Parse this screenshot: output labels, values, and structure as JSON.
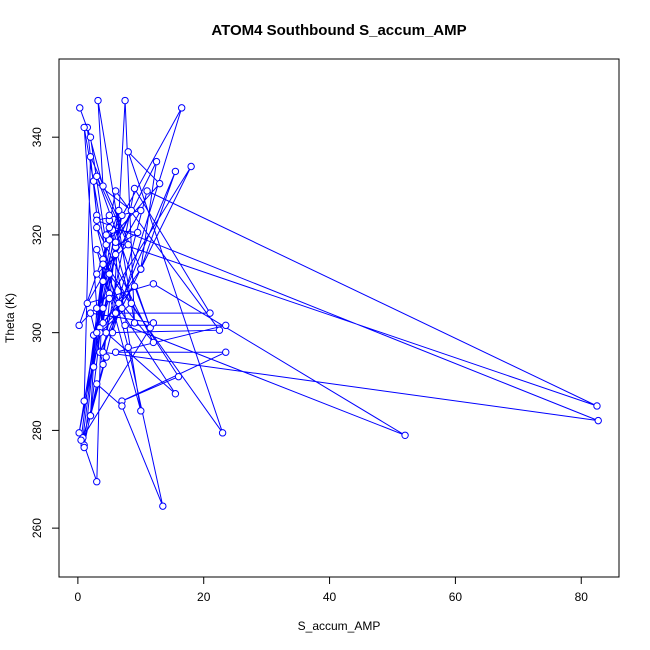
{
  "chart_data": {
    "type": "line",
    "title": "ATOM4 Southbound S_accum_AMP",
    "xlabel": "S_accum_AMP",
    "ylabel": "Theta (K)",
    "xlim": [
      -3,
      86
    ],
    "ylim": [
      250,
      356
    ],
    "x_ticks": [
      0,
      20,
      40,
      60,
      80
    ],
    "y_ticks": [
      260,
      280,
      300,
      320,
      340
    ],
    "series_color": "#0000ff",
    "marker": "open-circle",
    "grid": false,
    "legend": "none",
    "series": [
      {
        "points": [
          [
            0.3,
            346
          ],
          [
            2.0,
            340
          ],
          [
            4.5,
            318
          ],
          [
            16.5,
            346
          ],
          [
            5.5,
            300
          ],
          [
            7.5,
            347.5
          ],
          [
            9.0,
            302
          ],
          [
            3.2,
            347.5
          ],
          [
            4.0,
            330
          ],
          [
            1.5,
            342
          ],
          [
            3.0,
            324
          ],
          [
            2.5,
            331
          ],
          [
            8.5,
            325
          ],
          [
            6.0,
            318
          ],
          [
            12.5,
            335
          ],
          [
            10.0,
            313
          ],
          [
            15.5,
            333
          ],
          [
            3.5,
            296
          ],
          [
            18.0,
            334
          ],
          [
            4.0,
            305
          ],
          [
            2.0,
            283
          ],
          [
            3.0,
            305
          ],
          [
            1.0,
            342
          ],
          [
            5.0,
            312
          ],
          [
            23.0,
            279.5
          ],
          [
            8.0,
            337
          ],
          [
            13.0,
            330.5
          ],
          [
            5.0,
            319
          ],
          [
            82.5,
            285
          ],
          [
            11.0,
            329
          ],
          [
            6.0,
            304
          ],
          [
            21.0,
            304
          ],
          [
            9.0,
            329.5
          ],
          [
            4.0,
            296
          ],
          [
            82.7,
            282
          ],
          [
            3.0,
            323
          ],
          [
            10.0,
            325
          ],
          [
            1.5,
            306
          ],
          [
            12.0,
            310
          ],
          [
            52.0,
            279
          ],
          [
            7.5,
            301.5
          ],
          [
            23.5,
            301.5
          ],
          [
            6.0,
            296
          ],
          [
            23.5,
            296
          ],
          [
            7.0,
            286
          ],
          [
            16.0,
            291
          ],
          [
            3.0,
            317
          ],
          [
            10.0,
            284
          ],
          [
            5.0,
            323
          ],
          [
            2.5,
            293
          ],
          [
            7.0,
            324
          ],
          [
            4.0,
            310.5
          ],
          [
            12.0,
            298
          ],
          [
            3.0,
            321.5
          ],
          [
            8.0,
            297
          ],
          [
            13.5,
            264.5
          ],
          [
            7.0,
            285
          ],
          [
            3.0,
            289.5
          ],
          [
            1.0,
            277
          ],
          [
            3.0,
            269.5
          ],
          [
            4.0,
            315
          ],
          [
            6.0,
            329
          ],
          [
            22.5,
            300.5
          ],
          [
            4.5,
            300
          ],
          [
            15.5,
            287.5
          ],
          [
            5.0,
            308
          ],
          [
            0.2,
            301.5
          ],
          [
            6.5,
            325
          ],
          [
            1.0,
            286
          ],
          [
            2.0,
            336
          ],
          [
            10.0,
            313
          ],
          [
            3.5,
            301
          ],
          [
            0.2,
            279.5
          ],
          [
            5.5,
            321
          ],
          [
            9.5,
            320.5
          ],
          [
            6.0,
            317.5
          ],
          [
            4.0,
            302
          ],
          [
            9.0,
            309.5
          ],
          [
            11.5,
            301
          ],
          [
            3.0,
            332
          ],
          [
            8.0,
            318
          ],
          [
            3.0,
            312
          ],
          [
            6.5,
            306
          ],
          [
            2.0,
            283
          ],
          [
            4.5,
            295
          ],
          [
            0.8,
            278.5
          ],
          [
            5.0,
            321.5
          ],
          [
            8.5,
            306
          ],
          [
            3.5,
            300
          ],
          [
            6.0,
            316
          ],
          [
            2.5,
            299.5
          ],
          [
            7.0,
            305
          ],
          [
            4.0,
            314
          ],
          [
            5.0,
            307
          ],
          [
            3.0,
            300
          ],
          [
            6.0,
            318.5
          ],
          [
            4.0,
            293.5
          ],
          [
            2.0,
            304
          ],
          [
            12.0,
            302
          ],
          [
            0.5,
            278
          ],
          [
            5.0,
            324
          ],
          [
            4.5,
            320
          ],
          [
            1.0,
            276.5
          ]
        ]
      }
    ]
  }
}
